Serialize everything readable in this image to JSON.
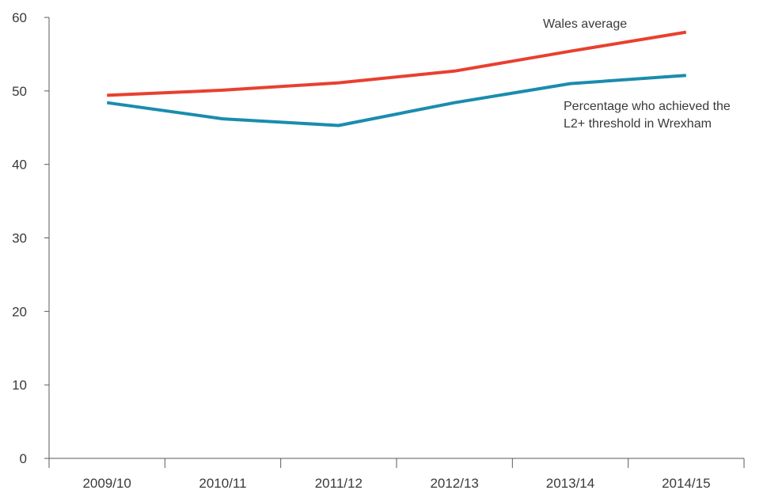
{
  "chart_data": {
    "type": "line",
    "categories": [
      "2009/10",
      "2010/11",
      "2011/12",
      "2012/13",
      "2013/14",
      "2014/15"
    ],
    "ylim": [
      0,
      60
    ],
    "yticks": [
      0,
      10,
      20,
      30,
      40,
      50,
      60
    ],
    "grid": false,
    "legend": "inline-labels",
    "series": [
      {
        "name": "Wales average",
        "color": "#e8402f",
        "values": [
          49.4,
          50.1,
          51.1,
          52.7,
          55.4,
          58.0
        ]
      },
      {
        "name": "Percentage who achieved the L2+ threshold in Wrexham",
        "label_lines": [
          "Percentage who achieved the",
          "L2+ threshold in Wrexham"
        ],
        "color": "#1a8cae",
        "values": [
          48.4,
          46.2,
          45.3,
          48.4,
          51.0,
          52.1
        ]
      }
    ]
  }
}
